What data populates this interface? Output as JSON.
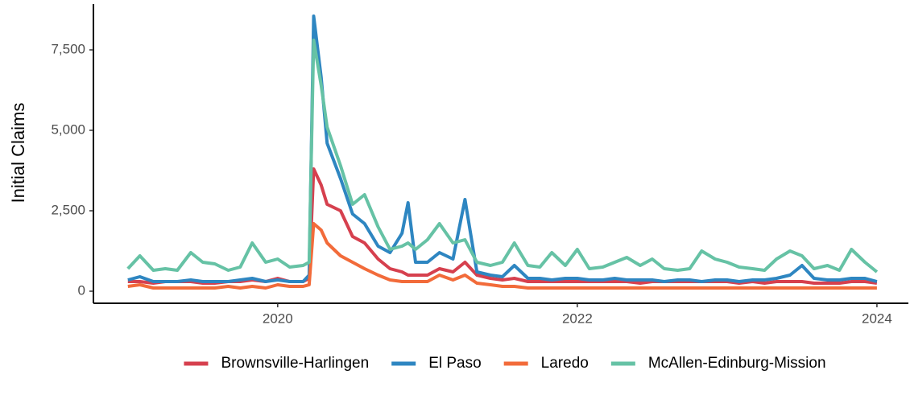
{
  "chart_data": {
    "type": "line",
    "y_label": "Initial Claims",
    "x": [
      2019.0,
      2019.08,
      2019.17,
      2019.25,
      2019.33,
      2019.42,
      2019.5,
      2019.58,
      2019.67,
      2019.75,
      2019.83,
      2019.92,
      2020.0,
      2020.08,
      2020.17,
      2020.21,
      2020.24,
      2020.29,
      2020.33,
      2020.42,
      2020.5,
      2020.58,
      2020.67,
      2020.75,
      2020.83,
      2020.87,
      2020.92,
      2021.0,
      2021.08,
      2021.17,
      2021.25,
      2021.33,
      2021.42,
      2021.5,
      2021.58,
      2021.67,
      2021.75,
      2021.83,
      2021.92,
      2022.0,
      2022.08,
      2022.17,
      2022.25,
      2022.33,
      2022.42,
      2022.5,
      2022.58,
      2022.67,
      2022.75,
      2022.83,
      2022.92,
      2023.0,
      2023.08,
      2023.17,
      2023.25,
      2023.33,
      2023.42,
      2023.5,
      2023.58,
      2023.67,
      2023.75,
      2023.83,
      2023.92,
      2024.0
    ],
    "series": [
      {
        "name": "Brownsville-Harlingen",
        "color": "#d6404e",
        "values": [
          300,
          300,
          250,
          300,
          300,
          300,
          250,
          250,
          300,
          300,
          350,
          300,
          400,
          300,
          300,
          400,
          3800,
          3300,
          2700,
          2500,
          1700,
          1500,
          1000,
          700,
          600,
          500,
          500,
          500,
          700,
          600,
          900,
          500,
          400,
          350,
          400,
          300,
          300,
          300,
          300,
          300,
          300,
          300,
          300,
          300,
          250,
          300,
          300,
          300,
          300,
          300,
          300,
          300,
          250,
          300,
          250,
          300,
          300,
          300,
          250,
          250,
          250,
          300,
          300,
          250
        ]
      },
      {
        "name": "El Paso",
        "color": "#2e86c1",
        "values": [
          350,
          450,
          300,
          300,
          300,
          350,
          300,
          300,
          300,
          350,
          400,
          300,
          350,
          300,
          300,
          500,
          8550,
          6650,
          4600,
          3500,
          2400,
          2100,
          1400,
          1200,
          1800,
          2750,
          900,
          900,
          1200,
          1000,
          2850,
          600,
          500,
          450,
          800,
          400,
          400,
          350,
          400,
          400,
          350,
          350,
          400,
          350,
          350,
          350,
          300,
          350,
          350,
          300,
          350,
          350,
          300,
          350,
          350,
          400,
          500,
          800,
          400,
          350,
          350,
          400,
          400,
          300
        ]
      },
      {
        "name": "Laredo",
        "color": "#f26b3a",
        "values": [
          150,
          200,
          100,
          100,
          100,
          100,
          100,
          100,
          150,
          100,
          150,
          100,
          200,
          150,
          150,
          200,
          2100,
          1900,
          1500,
          1100,
          900,
          700,
          500,
          350,
          300,
          300,
          300,
          300,
          500,
          350,
          500,
          250,
          200,
          150,
          150,
          100,
          100,
          100,
          100,
          100,
          100,
          100,
          100,
          100,
          100,
          100,
          100,
          100,
          100,
          100,
          100,
          100,
          100,
          100,
          100,
          100,
          100,
          100,
          100,
          100,
          100,
          100,
          100,
          100
        ]
      },
      {
        "name": "McAllen-Edinburg-Mission",
        "color": "#66c2a5",
        "values": [
          700,
          1100,
          650,
          700,
          650,
          1200,
          900,
          850,
          650,
          750,
          1500,
          900,
          1000,
          750,
          800,
          900,
          7800,
          6400,
          5100,
          3900,
          2700,
          3000,
          2000,
          1300,
          1400,
          1500,
          1300,
          1600,
          2100,
          1500,
          1600,
          900,
          800,
          900,
          1500,
          800,
          750,
          1200,
          800,
          1300,
          700,
          750,
          900,
          1050,
          800,
          1000,
          700,
          650,
          700,
          1250,
          1000,
          900,
          750,
          700,
          650,
          1000,
          1250,
          1100,
          700,
          800,
          650,
          1300,
          900,
          600
        ]
      }
    ],
    "xlim": [
      2018.77,
      2024.21
    ],
    "xticks": [
      2020,
      2022,
      2024
    ],
    "ylim": [
      -375,
      8925
    ],
    "yticks": [
      0,
      {
        "value": 2500,
        "label": "2,500"
      },
      {
        "value": 5000,
        "label": "5,000"
      },
      {
        "value": 7500,
        "label": "7,500"
      }
    ],
    "legend": "bottom"
  }
}
